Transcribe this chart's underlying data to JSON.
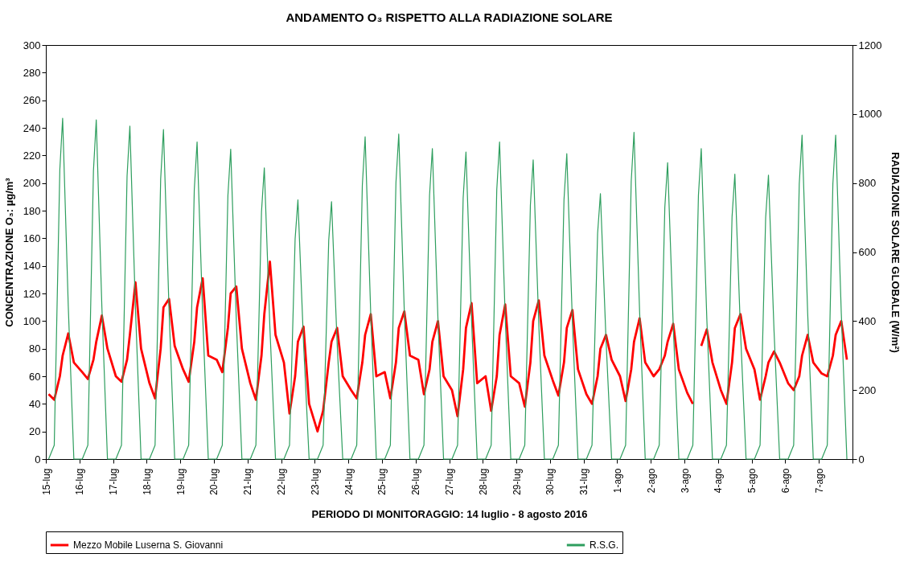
{
  "chart_data": {
    "type": "line",
    "title": "ANDAMENTO O₃ RISPETTO ALLA RADIAZIONE SOLARE",
    "xlabel": "PERIODO DI MONITORAGGIO: 14 luglio - 8 agosto 2016",
    "ylabel": "CONCENTRAZIONE O₃: µg/m³",
    "y2label": "RADIAZIONE SOLARE GLOBALE (W/m²)",
    "x": [
      "2016-07-15T02:00",
      "2016-07-15T06:00",
      "2016-07-15T10:00",
      "2016-07-15T12:00",
      "2016-07-15T16:00",
      "2016-07-15T20:00",
      "2016-07-16T02:00",
      "2016-07-16T06:00",
      "2016-07-16T10:00",
      "2016-07-16T12:00",
      "2016-07-16T16:00",
      "2016-07-16T20:00",
      "2016-07-17T02:00",
      "2016-07-17T06:00",
      "2016-07-17T10:00",
      "2016-07-17T12:00",
      "2016-07-17T16:00",
      "2016-07-17T20:00",
      "2016-07-18T02:00",
      "2016-07-18T06:00",
      "2016-07-18T10:00",
      "2016-07-18T12:00",
      "2016-07-18T16:00",
      "2016-07-18T20:00",
      "2016-07-19T02:00",
      "2016-07-19T06:00",
      "2016-07-19T10:00",
      "2016-07-19T12:00",
      "2016-07-19T16:00",
      "2016-07-19T20:00",
      "2016-07-20T02:00",
      "2016-07-20T06:00",
      "2016-07-20T10:00",
      "2016-07-20T12:00",
      "2016-07-20T16:00",
      "2016-07-20T20:00",
      "2016-07-21T02:00",
      "2016-07-21T06:00",
      "2016-07-21T10:00",
      "2016-07-21T12:00",
      "2016-07-21T16:00",
      "2016-07-21T20:00",
      "2016-07-22T02:00",
      "2016-07-22T06:00",
      "2016-07-22T10:00",
      "2016-07-22T12:00",
      "2016-07-22T16:00",
      "2016-07-22T20:00",
      "2016-07-23T02:00",
      "2016-07-23T06:00",
      "2016-07-23T10:00",
      "2016-07-23T12:00",
      "2016-07-23T16:00",
      "2016-07-23T20:00",
      "2016-07-24T02:00",
      "2016-07-24T06:00",
      "2016-07-24T10:00",
      "2016-07-24T12:00",
      "2016-07-24T16:00",
      "2016-07-24T20:00",
      "2016-07-25T02:00",
      "2016-07-25T06:00",
      "2016-07-25T10:00",
      "2016-07-25T12:00",
      "2016-07-25T16:00",
      "2016-07-25T20:00",
      "2016-07-26T02:00",
      "2016-07-26T06:00",
      "2016-07-26T10:00",
      "2016-07-26T12:00",
      "2016-07-26T16:00",
      "2016-07-26T20:00",
      "2016-07-27T02:00",
      "2016-07-27T06:00",
      "2016-07-27T10:00",
      "2016-07-27T12:00",
      "2016-07-27T16:00",
      "2016-07-27T20:00",
      "2016-07-28T02:00",
      "2016-07-28T06:00",
      "2016-07-28T10:00",
      "2016-07-28T12:00",
      "2016-07-28T16:00",
      "2016-07-28T20:00",
      "2016-07-29T02:00",
      "2016-07-29T06:00",
      "2016-07-29T10:00",
      "2016-07-29T12:00",
      "2016-07-29T16:00",
      "2016-07-29T20:00",
      "2016-07-30T02:00",
      "2016-07-30T06:00",
      "2016-07-30T10:00",
      "2016-07-30T12:00",
      "2016-07-30T16:00",
      "2016-07-30T20:00",
      "2016-07-31T02:00",
      "2016-07-31T06:00",
      "2016-07-31T10:00",
      "2016-07-31T12:00",
      "2016-07-31T16:00",
      "2016-07-31T20:00",
      "2016-08-01T02:00",
      "2016-08-01T06:00",
      "2016-08-01T10:00",
      "2016-08-01T12:00",
      "2016-08-01T16:00",
      "2016-08-01T20:00",
      "2016-08-02T02:00",
      "2016-08-02T06:00",
      "2016-08-02T10:00",
      "2016-08-02T12:00",
      "2016-08-02T16:00",
      "2016-08-02T20:00",
      "2016-08-03T02:00",
      "2016-08-03T06:00",
      "2016-08-03T10:00",
      "2016-08-03T12:00",
      "2016-08-03T16:00",
      "2016-08-03T20:00",
      "2016-08-04T02:00",
      "2016-08-04T06:00",
      "2016-08-04T10:00",
      "2016-08-04T12:00",
      "2016-08-04T16:00",
      "2016-08-04T20:00",
      "2016-08-05T02:00",
      "2016-08-05T06:00",
      "2016-08-05T10:00",
      "2016-08-05T12:00",
      "2016-08-05T16:00",
      "2016-08-05T20:00",
      "2016-08-06T02:00",
      "2016-08-06T06:00",
      "2016-08-06T10:00",
      "2016-08-06T12:00",
      "2016-08-06T16:00",
      "2016-08-06T20:00",
      "2016-08-07T02:00",
      "2016-08-07T06:00",
      "2016-08-07T10:00",
      "2016-08-07T12:00",
      "2016-08-07T16:00",
      "2016-08-07T20:00"
    ],
    "xlim": [
      "2016-07-15",
      "2016-08-08"
    ],
    "xticks": [
      {
        "value": "2016-07-15",
        "label": "15-lug"
      },
      {
        "value": "2016-07-16",
        "label": "16-lug"
      },
      {
        "value": "2016-07-17",
        "label": "17-lug"
      },
      {
        "value": "2016-07-18",
        "label": "18-lug"
      },
      {
        "value": "2016-07-19",
        "label": "19-lug"
      },
      {
        "value": "2016-07-20",
        "label": "20-lug"
      },
      {
        "value": "2016-07-21",
        "label": "21-lug"
      },
      {
        "value": "2016-07-22",
        "label": "22-lug"
      },
      {
        "value": "2016-07-23",
        "label": "23-lug"
      },
      {
        "value": "2016-07-24",
        "label": "24-lug"
      },
      {
        "value": "2016-07-25",
        "label": "25-lug"
      },
      {
        "value": "2016-07-26",
        "label": "26-lug"
      },
      {
        "value": "2016-07-27",
        "label": "27-lug"
      },
      {
        "value": "2016-07-28",
        "label": "28-lug"
      },
      {
        "value": "2016-07-29",
        "label": "29-lug"
      },
      {
        "value": "2016-07-30",
        "label": "30-lug"
      },
      {
        "value": "2016-07-31",
        "label": "31-lug"
      },
      {
        "value": "2016-08-01",
        "label": "1-ago"
      },
      {
        "value": "2016-08-02",
        "label": "2-ago"
      },
      {
        "value": "2016-08-03",
        "label": "3-ago"
      },
      {
        "value": "2016-08-04",
        "label": "4-ago"
      },
      {
        "value": "2016-08-05",
        "label": "5-ago"
      },
      {
        "value": "2016-08-06",
        "label": "6-ago"
      },
      {
        "value": "2016-08-07",
        "label": "7-ago"
      },
      {
        "value": "2016-08-08",
        "label": null
      }
    ],
    "ylim": [
      0,
      300
    ],
    "yticks": [
      0,
      20,
      40,
      60,
      80,
      100,
      120,
      140,
      160,
      180,
      200,
      220,
      240,
      260,
      280,
      300
    ],
    "y2lim": [
      0,
      1200
    ],
    "y2ticks": [
      0,
      200,
      400,
      600,
      800,
      1000,
      1200
    ],
    "grid": false,
    "legend": "bottom",
    "line_style": "solid",
    "marker": "none",
    "series": [
      {
        "name": "Mezzo Mobile Luserna S. Giovanni",
        "color": "#ff0000",
        "values": [
          47,
          43,
          60,
          75,
          91,
          70,
          63,
          58,
          72,
          85,
          104,
          80,
          60,
          56,
          72,
          90,
          128,
          80,
          55,
          44,
          80,
          110,
          116,
          82,
          65,
          56,
          85,
          110,
          131,
          75,
          72,
          63,
          95,
          120,
          125,
          80,
          55,
          43,
          75,
          105,
          143,
          90,
          70,
          33,
          60,
          85,
          96,
          40,
          20,
          35,
          70,
          85,
          95,
          60,
          50,
          44,
          70,
          90,
          105,
          60,
          63,
          44,
          70,
          95,
          107,
          75,
          72,
          47,
          65,
          85,
          100,
          60,
          50,
          31,
          65,
          95,
          113,
          55,
          60,
          35,
          60,
          90,
          112,
          60,
          55,
          38,
          70,
          100,
          115,
          75,
          57,
          46,
          70,
          95,
          108,
          65,
          47,
          40,
          60,
          80,
          90,
          72,
          60,
          42,
          65,
          85,
          102,
          70,
          60,
          65,
          75,
          85,
          98,
          65,
          48,
          40,
          null,
          82,
          94,
          70,
          50,
          40,
          70,
          95,
          105,
          80,
          65,
          43,
          60,
          70,
          78,
          70,
          55,
          50,
          60,
          75,
          90,
          70,
          62,
          60,
          75,
          90,
          100,
          72
        ]
      },
      {
        "name": "R.S.G.",
        "color": "#2e9e5e",
        "axis": "y2",
        "values": [
          0,
          40,
          840,
          988,
          445,
          0,
          0,
          40,
          836,
          983,
          442,
          0,
          0,
          40,
          820,
          965,
          434,
          0,
          0,
          40,
          812,
          955,
          430,
          0,
          0,
          40,
          781,
          919,
          414,
          0,
          0,
          40,
          763,
          898,
          404,
          0,
          0,
          40,
          717,
          844,
          380,
          0,
          0,
          40,
          638,
          751,
          338,
          0,
          0,
          40,
          634,
          746,
          336,
          0,
          0,
          40,
          794,
          934,
          420,
          0,
          0,
          40,
          801,
          942,
          424,
          0,
          0,
          40,
          765,
          900,
          405,
          0,
          0,
          40,
          757,
          890,
          401,
          0,
          0,
          40,
          781,
          919,
          414,
          0,
          0,
          40,
          737,
          867,
          390,
          0,
          0,
          40,
          752,
          885,
          398,
          0,
          0,
          40,
          654,
          769,
          346,
          0,
          0,
          40,
          805,
          947,
          426,
          0,
          0,
          40,
          730,
          859,
          387,
          0,
          0,
          40,
          765,
          900,
          405,
          0,
          0,
          40,
          702,
          826,
          372,
          0,
          0,
          40,
          700,
          823,
          370,
          0,
          0,
          40,
          798,
          939,
          423,
          0,
          0,
          40,
          798,
          939,
          423,
          0
        ]
      }
    ]
  }
}
